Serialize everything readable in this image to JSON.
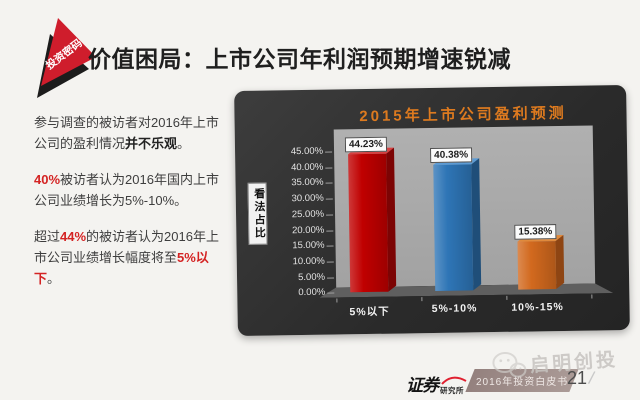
{
  "badge": {
    "label": "投资密码"
  },
  "header": {
    "title": "价值困局：上市公司年利润预期增速锐减"
  },
  "survey": {
    "p1_a": "参与调查的被访者对2016年上市公司的盈利情况",
    "p1_b": "并不乐观",
    "p1_c": "。",
    "p2_a": "40%",
    "p2_b": "被访者认为2016年国内上市公司业绩增长为5%-10%。",
    "p3_a": "超过",
    "p3_b": "44%",
    "p3_c": "的被访者认为2016年上市公司业绩增长幅度将至",
    "p3_d": "5%以下",
    "p3_e": "。"
  },
  "chart_data": {
    "type": "bar",
    "title": "2015年上市公司盈利预测",
    "categories": [
      "5%以下",
      "5%-10%",
      "10%-15%"
    ],
    "values": [
      44.23,
      40.38,
      15.38
    ],
    "data_labels": [
      "44.23%",
      "40.38%",
      "15.38%"
    ],
    "ylabel": "看法占比",
    "xlabel": "",
    "ylim": [
      0,
      45
    ],
    "y_ticks": [
      "45.00%",
      "40.00%",
      "35.00%",
      "30.00%",
      "25.00%",
      "20.00%",
      "15.00%",
      "10.00%",
      "5.00%",
      "0.00%"
    ],
    "grid": false,
    "legend": "none",
    "bar_colors": [
      {
        "front": "#c00000",
        "side": "#7c0404",
        "top": "#d84040"
      },
      {
        "front": "#2e75b6",
        "side": "#1f4e79",
        "top": "#5b9bd5"
      },
      {
        "front": "#d2691e",
        "side": "#8e4513",
        "top": "#e08a3c"
      }
    ],
    "panel_background": "#2e2e2e",
    "plot_background": "#a9a9a9",
    "title_color": "#dd7a1f"
  },
  "footer": {
    "logo_main": "证券",
    "logo_sub": "研究所",
    "ribbon": "2016年投资白皮书",
    "page_number": "21",
    "page_slash": "/",
    "watermark": "启明创投"
  }
}
